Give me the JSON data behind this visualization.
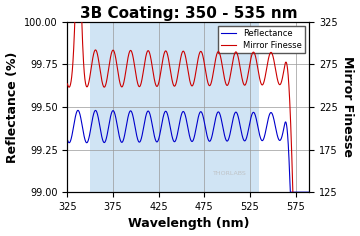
{
  "title": "3B Coating: 350 - 535 nm",
  "xlabel": "Wavelength (nm)",
  "ylabel_left": "Reflectance (%)",
  "ylabel_right": "Mirror Finesse",
  "xlim": [
    325,
    590
  ],
  "ylim_left": [
    99.0,
    100.0
  ],
  "ylim_right": [
    125,
    325
  ],
  "xticks": [
    325,
    375,
    425,
    475,
    525,
    575
  ],
  "yticks_left": [
    99.0,
    99.25,
    99.5,
    99.75,
    100.0
  ],
  "yticks_right": [
    125,
    175,
    225,
    275,
    325
  ],
  "bg_shade_xmin": 350,
  "bg_shade_xmax": 535,
  "legend_labels": [
    "Reflectance",
    "Mirror Finesse"
  ],
  "line_colors": [
    "#0000cc",
    "#cc0000"
  ],
  "grid_color": "#999999",
  "bg_color": "#d0e4f4",
  "watermark": "THORLABS",
  "title_fontsize": 11,
  "axis_label_fontsize": 9,
  "tick_fontsize": 7
}
